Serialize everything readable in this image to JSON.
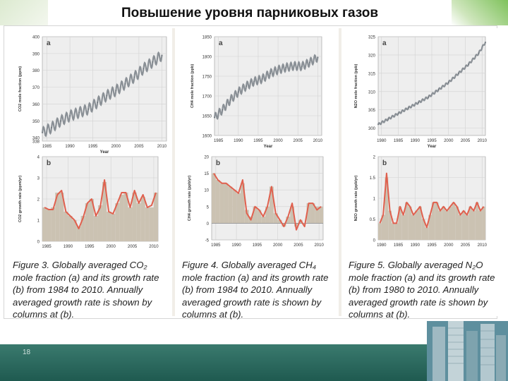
{
  "slide": {
    "title": "Повышение уровня парниковых газов",
    "page_number": "18"
  },
  "chart_data": [
    {
      "type": "line",
      "panel": "a",
      "gas": "CO2",
      "ylabel": "CO2 mole fraction (ppm)",
      "xlabel": "Year",
      "xlim": [
        1984,
        2011
      ],
      "ylim": [
        338,
        400
      ],
      "xticks": [
        "1985",
        "1990",
        "1995",
        "2000",
        "2005",
        "2010"
      ],
      "yticks": [
        "338",
        "340",
        "350",
        "360",
        "370",
        "380",
        "390",
        "400"
      ],
      "x": [
        1984,
        1986,
        1988,
        1990,
        1992,
        1994,
        1996,
        1998,
        2000,
        2002,
        2004,
        2006,
        2008,
        2010
      ],
      "y": [
        343,
        346,
        350,
        353,
        355,
        357,
        361,
        365,
        368,
        372,
        376,
        381,
        385,
        389
      ],
      "seasonal_amplitude": 3
    },
    {
      "type": "area",
      "panel": "b",
      "gas": "CO2",
      "ylabel": "CO2 growth rate (ppm/yr)",
      "xlabel": "",
      "xlim": [
        1984,
        2011
      ],
      "ylim": [
        0,
        4
      ],
      "xticks": [
        "1985",
        "1990",
        "1995",
        "2000",
        "2005",
        "2010"
      ],
      "yticks": [
        "0",
        "1",
        "2",
        "3",
        "4"
      ],
      "x": [
        1984,
        1985,
        1986,
        1987,
        1988,
        1989,
        1990,
        1991,
        1992,
        1993,
        1994,
        1995,
        1996,
        1997,
        1998,
        1999,
        2000,
        2001,
        2002,
        2003,
        2004,
        2005,
        2006,
        2007,
        2008,
        2009,
        2010
      ],
      "y": [
        1.6,
        1.5,
        1.5,
        2.2,
        2.4,
        1.4,
        1.2,
        1.0,
        0.6,
        1.1,
        1.8,
        2.0,
        1.2,
        1.6,
        2.9,
        1.4,
        1.3,
        1.8,
        2.3,
        2.3,
        1.6,
        2.4,
        1.8,
        2.2,
        1.6,
        1.7,
        2.3
      ],
      "annual": [
        1.6,
        1.5,
        1.6,
        2.3,
        2.3,
        1.4,
        1.2,
        1.0,
        0.7,
        1.2,
        1.8,
        2.0,
        1.2,
        1.7,
        2.8,
        1.4,
        1.3,
        1.8,
        2.2,
        2.3,
        1.6,
        2.3,
        1.8,
        2.1,
        1.6,
        1.6,
        2.3
      ]
    },
    {
      "type": "line",
      "panel": "a",
      "gas": "CH4",
      "ylabel": "CH4 mole fraction (ppb)",
      "xlabel": "Year",
      "xlim": [
        1984,
        2011
      ],
      "ylim": [
        1600,
        1850
      ],
      "xticks": [
        "1985",
        "1990",
        "1995",
        "2000",
        "2005",
        "2010"
      ],
      "yticks": [
        "1600",
        "1650",
        "1700",
        "1750",
        "1800",
        "1850"
      ],
      "x": [
        1984,
        1986,
        1988,
        1990,
        1992,
        1994,
        1996,
        1998,
        2000,
        2002,
        2004,
        2006,
        2008,
        2010
      ],
      "y": [
        1645,
        1665,
        1690,
        1710,
        1725,
        1737,
        1743,
        1757,
        1766,
        1772,
        1776,
        1775,
        1785,
        1798
      ],
      "seasonal_amplitude": 10
    },
    {
      "type": "area",
      "panel": "b",
      "gas": "CH4",
      "ylabel": "CH4 growth rate (ppb/yr)",
      "xlabel": "",
      "xlim": [
        1984,
        2011
      ],
      "ylim": [
        -5,
        20
      ],
      "xticks": [
        "1985",
        "1990",
        "1995",
        "2000",
        "2005",
        "2010"
      ],
      "yticks": [
        "-5",
        "0",
        "5",
        "10",
        "15",
        "20"
      ],
      "x": [
        1984,
        1985,
        1986,
        1987,
        1988,
        1989,
        1990,
        1991,
        1992,
        1993,
        1994,
        1995,
        1996,
        1997,
        1998,
        1999,
        2000,
        2001,
        2002,
        2003,
        2004,
        2005,
        2006,
        2007,
        2008,
        2009,
        2010
      ],
      "y": [
        15,
        13,
        12,
        12,
        11,
        10,
        9,
        13,
        3,
        1,
        5,
        4,
        2,
        5,
        11,
        3,
        1,
        -1,
        2,
        6,
        -2,
        1,
        -1,
        6,
        6,
        4,
        5
      ],
      "annual": [
        15,
        13,
        12,
        12,
        11,
        10,
        9,
        12,
        4,
        2,
        5,
        4,
        2,
        5,
        11,
        3,
        1,
        -1,
        2,
        5,
        -1,
        1,
        0,
        6,
        6,
        5,
        5
      ]
    },
    {
      "type": "line",
      "panel": "a",
      "gas": "N2O",
      "ylabel": "N2O mole fraction (ppb)",
      "xlabel": "Year",
      "xlim": [
        1979,
        2011
      ],
      "ylim": [
        298,
        325
      ],
      "xticks": [
        "1980",
        "1985",
        "1990",
        "1995",
        "2000",
        "2005",
        "2010"
      ],
      "yticks": [
        "300",
        "305",
        "310",
        "315",
        "320",
        "325"
      ],
      "x": [
        1979,
        1982,
        1985,
        1988,
        1991,
        1994,
        1997,
        2000,
        2003,
        2006,
        2009,
        2011
      ],
      "y": [
        301,
        302.5,
        304,
        305.5,
        307,
        308.5,
        310.5,
        312.5,
        315,
        317.5,
        320.5,
        323.5
      ],
      "seasonal_amplitude": 0.3
    },
    {
      "type": "area",
      "panel": "b",
      "gas": "N2O",
      "ylabel": "N2O growth rate (ppb/yr)",
      "xlabel": "",
      "xlim": [
        1979,
        2011
      ],
      "ylim": [
        0,
        2
      ],
      "xticks": [
        "1980",
        "1985",
        "1990",
        "1995",
        "2000",
        "2005",
        "2010"
      ],
      "yticks": [
        "0",
        "0.5",
        "1",
        "1.5",
        "2"
      ],
      "x": [
        1979,
        1980,
        1981,
        1982,
        1983,
        1984,
        1985,
        1986,
        1987,
        1988,
        1989,
        1990,
        1991,
        1992,
        1993,
        1994,
        1995,
        1996,
        1997,
        1998,
        1999,
        2000,
        2001,
        2002,
        2003,
        2004,
        2005,
        2006,
        2007,
        2008,
        2009,
        2010
      ],
      "y": [
        0.4,
        0.6,
        1.6,
        0.7,
        0.4,
        0.4,
        0.8,
        0.6,
        0.9,
        0.8,
        0.6,
        0.7,
        0.8,
        0.5,
        0.3,
        0.6,
        0.9,
        0.9,
        0.7,
        0.8,
        0.7,
        0.8,
        0.9,
        0.8,
        0.6,
        0.7,
        0.6,
        0.8,
        0.7,
        0.9,
        0.7,
        0.8
      ],
      "annual": [
        0.4,
        0.6,
        1.5,
        0.7,
        0.4,
        0.4,
        0.8,
        0.6,
        0.9,
        0.8,
        0.6,
        0.7,
        0.8,
        0.5,
        0.3,
        0.6,
        0.9,
        0.9,
        0.7,
        0.8,
        0.7,
        0.8,
        0.9,
        0.8,
        0.6,
        0.7,
        0.6,
        0.8,
        0.7,
        0.9,
        0.7,
        0.8
      ]
    }
  ],
  "panels": [
    {
      "letter_a": "a",
      "letter_b": "b",
      "caption": "Figure 3. Globally averaged CO₂ mole fraction (a) and its growth rate (b) from 1984 to 2010. Annually averaged growth rate is shown by columns at (b)."
    },
    {
      "letter_a": "a",
      "letter_b": "b",
      "caption": "Figure 4. Globally averaged CH₄ mole fraction (a) and its growth rate (b) from 1984 to 2010. Annually averaged growth rate is shown by columns at (b)."
    },
    {
      "letter_a": "a",
      "letter_b": "b",
      "caption": "Figure 5. Globally averaged N₂O mole fraction (a) and its growth rate (b) from 1980 to 2010. Annually averaged growth rate is shown by columns at (b)."
    }
  ],
  "colors": {
    "plot_bg": "#eeeeee",
    "line_gray": "#8a9096",
    "growth_line": "#e0604e",
    "bar_fill": "#cbc2b2",
    "footer": "#2b6b5f"
  }
}
